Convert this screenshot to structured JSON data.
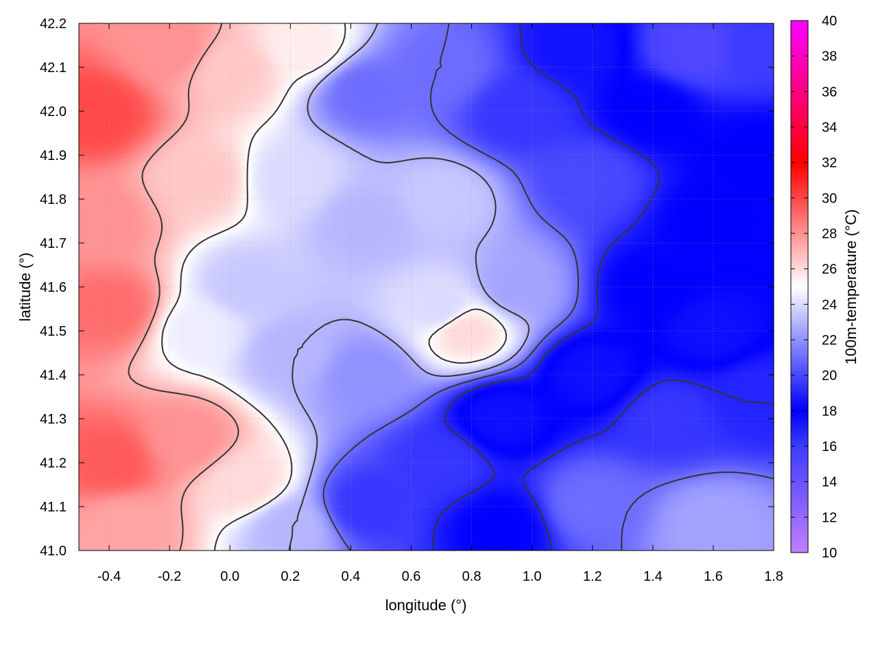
{
  "chart_data": {
    "type": "heatmap",
    "title": "",
    "xlabel": "longitude (°)",
    "ylabel": "latitude (°)",
    "colorbar_label": "100m-temperature (°C)",
    "xlim": [
      -0.5,
      1.8
    ],
    "ylim": [
      41.0,
      42.2
    ],
    "zlim": [
      10,
      40
    ],
    "x_ticks": [
      "-0.4",
      "-0.2",
      "0.0",
      "0.2",
      "0.4",
      "0.6",
      "0.8",
      "1.0",
      "1.2",
      "1.4",
      "1.6",
      "1.8"
    ],
    "y_ticks": [
      "41.0",
      "41.1",
      "41.2",
      "41.3",
      "41.4",
      "41.5",
      "41.6",
      "41.7",
      "41.8",
      "41.9",
      "42.0",
      "42.1",
      "42.2"
    ],
    "colorbar_ticks": [
      "10",
      "12",
      "14",
      "16",
      "18",
      "20",
      "22",
      "24",
      "26",
      "28",
      "30",
      "32",
      "34",
      "36",
      "38",
      "40"
    ],
    "grid": true,
    "contours": true,
    "colormap": [
      {
        "value": 10,
        "color": "#c080ff"
      },
      {
        "value": 16,
        "color": "#3c3cff"
      },
      {
        "value": 18,
        "color": "#0000ff"
      },
      {
        "value": 25,
        "color": "#ffffff"
      },
      {
        "value": 32,
        "color": "#ff0000"
      },
      {
        "value": 40,
        "color": "#ff00ff"
      }
    ],
    "field_points": [
      {
        "lon": -0.45,
        "lat": 42.0,
        "t": 30.0
      },
      {
        "lon": -0.45,
        "lat": 41.75,
        "t": 28.0
      },
      {
        "lon": -0.4,
        "lat": 41.55,
        "t": 29.0
      },
      {
        "lon": -0.4,
        "lat": 41.2,
        "t": 29.5
      },
      {
        "lon": -0.35,
        "lat": 41.05,
        "t": 27.5
      },
      {
        "lon": -0.2,
        "lat": 42.15,
        "t": 28.0
      },
      {
        "lon": -0.15,
        "lat": 41.25,
        "t": 28.0
      },
      {
        "lon": -0.1,
        "lat": 41.85,
        "t": 26.5
      },
      {
        "lon": -0.1,
        "lat": 41.5,
        "t": 24.5
      },
      {
        "lon": 0.0,
        "lat": 42.1,
        "t": 26.5
      },
      {
        "lon": 0.05,
        "lat": 41.15,
        "t": 26.0
      },
      {
        "lon": 0.05,
        "lat": 41.6,
        "t": 23.5
      },
      {
        "lon": 0.25,
        "lat": 42.15,
        "t": 25.5
      },
      {
        "lon": 0.2,
        "lat": 41.85,
        "t": 24.0
      },
      {
        "lon": 0.2,
        "lat": 41.45,
        "t": 23.0
      },
      {
        "lon": 0.2,
        "lat": 41.05,
        "t": 23.0
      },
      {
        "lon": 0.45,
        "lat": 42.05,
        "t": 21.0
      },
      {
        "lon": 0.45,
        "lat": 41.75,
        "t": 23.0
      },
      {
        "lon": 0.45,
        "lat": 41.4,
        "t": 22.0
      },
      {
        "lon": 0.45,
        "lat": 41.1,
        "t": 19.5
      },
      {
        "lon": 0.7,
        "lat": 42.1,
        "t": 21.0
      },
      {
        "lon": 0.7,
        "lat": 41.8,
        "t": 23.5
      },
      {
        "lon": 0.7,
        "lat": 41.55,
        "t": 24.0
      },
      {
        "lon": 0.78,
        "lat": 41.5,
        "t": 26.0
      },
      {
        "lon": 0.7,
        "lat": 41.2,
        "t": 19.5
      },
      {
        "lon": 0.9,
        "lat": 41.3,
        "t": 17.5
      },
      {
        "lon": 0.95,
        "lat": 41.6,
        "t": 22.5
      },
      {
        "lon": 0.9,
        "lat": 41.05,
        "t": 18.0
      },
      {
        "lon": 0.95,
        "lat": 42.0,
        "t": 19.5
      },
      {
        "lon": 1.15,
        "lat": 42.15,
        "t": 18.5
      },
      {
        "lon": 1.2,
        "lat": 41.85,
        "t": 20.0
      },
      {
        "lon": 1.2,
        "lat": 41.4,
        "t": 17.5
      },
      {
        "lon": 1.2,
        "lat": 41.1,
        "t": 21.0
      },
      {
        "lon": 1.4,
        "lat": 42.0,
        "t": 18.0
      },
      {
        "lon": 1.4,
        "lat": 41.6,
        "t": 18.0
      },
      {
        "lon": 1.45,
        "lat": 41.3,
        "t": 19.5
      },
      {
        "lon": 1.55,
        "lat": 42.15,
        "t": 15.0
      },
      {
        "lon": 1.6,
        "lat": 41.75,
        "t": 18.0
      },
      {
        "lon": 1.6,
        "lat": 41.5,
        "t": 17.5
      },
      {
        "lon": 1.75,
        "lat": 42.15,
        "t": 16.0
      },
      {
        "lon": 1.75,
        "lat": 41.9,
        "t": 18.0
      },
      {
        "lon": 1.75,
        "lat": 41.35,
        "t": 19.0
      },
      {
        "lon": 1.6,
        "lat": 41.05,
        "t": 22.5
      }
    ]
  }
}
